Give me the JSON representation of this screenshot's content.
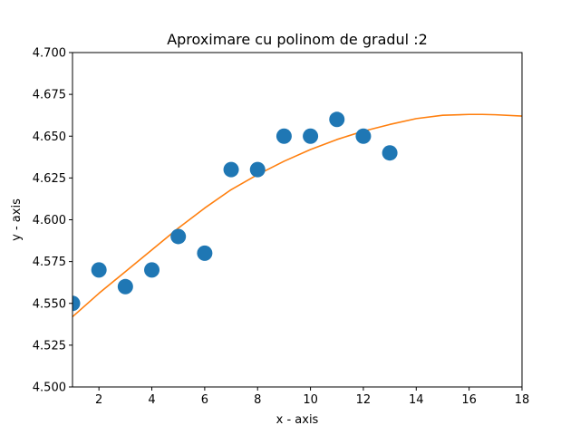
{
  "chart_data": {
    "type": "scatter",
    "title": "Aproximare cu polinom de gradul :2",
    "xlabel": "x - axis",
    "ylabel": "y - axis",
    "xlim": [
      1,
      18
    ],
    "ylim": [
      4.5,
      4.7
    ],
    "xticks": [
      2,
      4,
      6,
      8,
      10,
      12,
      14,
      16,
      18
    ],
    "xtick_labels": [
      "2",
      "4",
      "6",
      "8",
      "10",
      "12",
      "14",
      "16",
      "18"
    ],
    "yticks": [
      4.5,
      4.525,
      4.55,
      4.575,
      4.6,
      4.625,
      4.65,
      4.675,
      4.7
    ],
    "ytick_labels": [
      "4.500",
      "4.525",
      "4.550",
      "4.575",
      "4.600",
      "4.625",
      "4.650",
      "4.675",
      "4.700"
    ],
    "grid": false,
    "series": [
      {
        "kind": "scatter",
        "color": "#1f77b4",
        "x": [
          1,
          2,
          3,
          4,
          5,
          6,
          7,
          8,
          9,
          10,
          11,
          12,
          13
        ],
        "y": [
          4.55,
          4.57,
          4.56,
          4.57,
          4.59,
          4.58,
          4.63,
          4.63,
          4.65,
          4.65,
          4.66,
          4.65,
          4.64
        ]
      },
      {
        "kind": "line",
        "color": "#ff7f0e",
        "x": [
          1,
          2,
          3,
          4,
          5,
          6,
          7,
          8,
          9,
          10,
          11,
          12,
          13,
          14,
          15,
          16,
          16.5,
          17,
          18
        ],
        "y": [
          4.542,
          4.556,
          4.569,
          4.582,
          4.595,
          4.607,
          4.618,
          4.627,
          4.635,
          4.642,
          4.648,
          4.653,
          4.657,
          4.6605,
          4.6625,
          4.663,
          4.663,
          4.6628,
          4.662
        ]
      }
    ]
  }
}
